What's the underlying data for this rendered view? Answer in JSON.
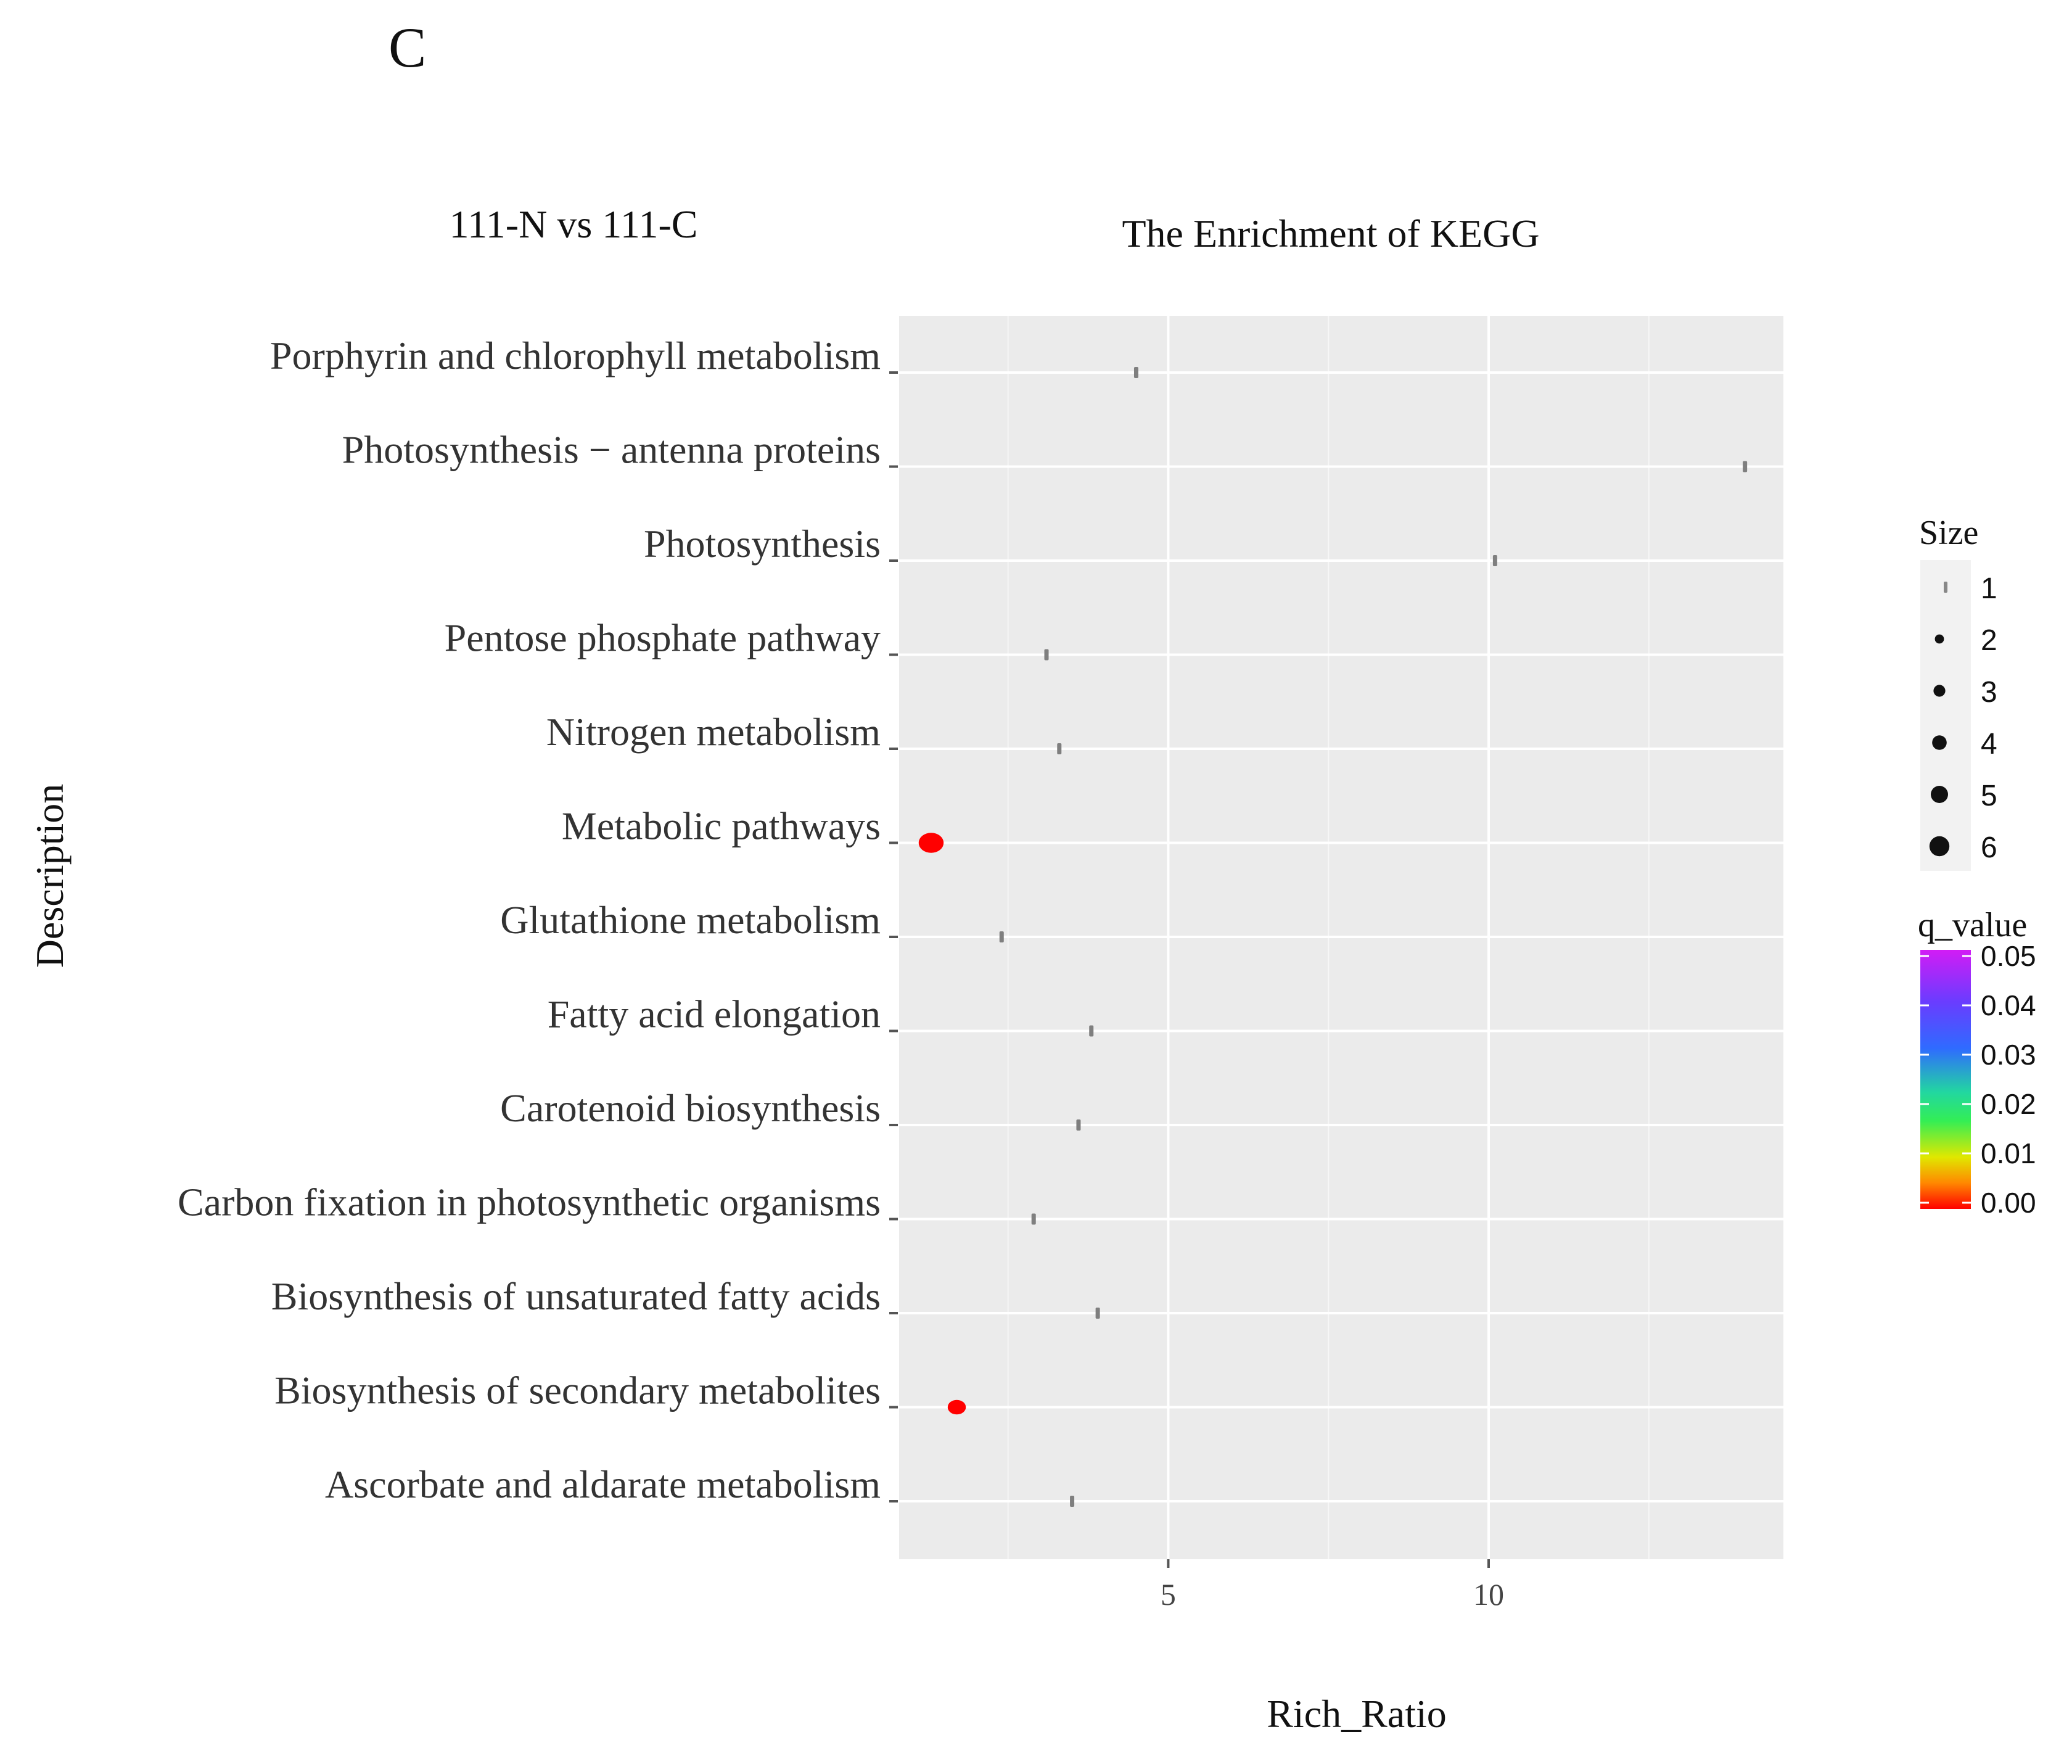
{
  "panel_label": "C",
  "chart_data": {
    "type": "scatter",
    "subtitle": "111-N vs 111-C",
    "title": "The Enrichment of KEGG",
    "xlabel": "Rich_Ratio",
    "ylabel": "Description",
    "xlim": [
      0.8,
      14.6
    ],
    "x_ticks": [
      5,
      10
    ],
    "x_tick_labels": [
      "5",
      "10"
    ],
    "grid": true,
    "legend_position": "right",
    "categories": [
      "Porphyrin and chlorophyll metabolism",
      "Photosynthesis − antenna proteins",
      "Photosynthesis",
      "Pentose phosphate pathway",
      "Nitrogen metabolism",
      "Metabolic pathways",
      "Glutathione metabolism",
      "Fatty acid elongation",
      "Carotenoid biosynthesis",
      "Carbon fixation in photosynthetic organisms",
      "Biosynthesis of unsaturated fatty acids",
      "Biosynthesis of secondary metabolites",
      "Ascorbate and aldarate metabolism"
    ],
    "points": [
      {
        "category": "Porphyrin and chlorophyll metabolism",
        "rich_ratio": 4.5,
        "size": 1,
        "q_value": null
      },
      {
        "category": "Photosynthesis − antenna proteins",
        "rich_ratio": 14.0,
        "size": 1,
        "q_value": null
      },
      {
        "category": "Photosynthesis",
        "rich_ratio": 10.1,
        "size": 1,
        "q_value": null
      },
      {
        "category": "Pentose phosphate pathway",
        "rich_ratio": 3.1,
        "size": 1,
        "q_value": null
      },
      {
        "category": "Nitrogen metabolism",
        "rich_ratio": 3.3,
        "size": 1,
        "q_value": null
      },
      {
        "category": "Metabolic pathways",
        "rich_ratio": 1.3,
        "size": 6,
        "q_value": 0.0
      },
      {
        "category": "Glutathione metabolism",
        "rich_ratio": 2.4,
        "size": 1,
        "q_value": null
      },
      {
        "category": "Fatty acid elongation",
        "rich_ratio": 3.8,
        "size": 1,
        "q_value": null
      },
      {
        "category": "Carotenoid biosynthesis",
        "rich_ratio": 3.6,
        "size": 1,
        "q_value": null
      },
      {
        "category": "Carbon fixation in photosynthetic organisms",
        "rich_ratio": 2.9,
        "size": 1,
        "q_value": null
      },
      {
        "category": "Biosynthesis of unsaturated fatty acids",
        "rich_ratio": 3.9,
        "size": 1,
        "q_value": null
      },
      {
        "category": "Biosynthesis of secondary metabolites",
        "rich_ratio": 1.7,
        "size": 4,
        "q_value": 0.0
      },
      {
        "category": "Ascorbate and aldarate metabolism",
        "rich_ratio": 3.5,
        "size": 1,
        "q_value": null
      }
    ],
    "size_legend": {
      "title": "Size",
      "entries": [
        "1",
        "2",
        "3",
        "4",
        "5",
        "6"
      ]
    },
    "color_legend": {
      "title": "q_value",
      "tick_labels": [
        "0.05",
        "0.04",
        "0.03",
        "0.02",
        "0.01",
        "0.00"
      ],
      "range": [
        0.0,
        0.05
      ]
    }
  },
  "colors": {
    "panel_bg": "#ebebeb",
    "grid": "#ffffff",
    "na_point": "#7f7f7f",
    "low_q": "#ff0000",
    "legend_key_bg": "#f2f2f2",
    "text": "#222222",
    "tick_text": "#444444"
  }
}
